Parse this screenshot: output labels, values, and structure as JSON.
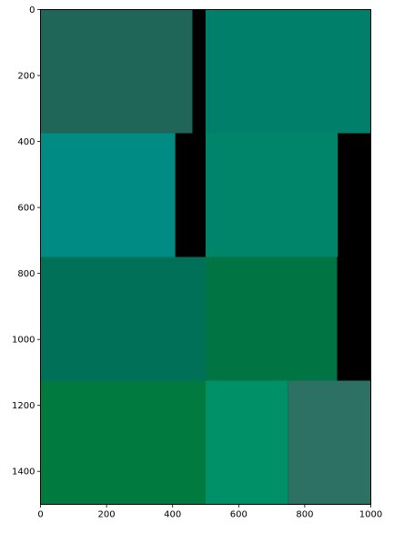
{
  "chart_data": {
    "type": "heatmap",
    "title": "",
    "xlabel": "",
    "ylabel": "",
    "xlim": [
      0,
      1000
    ],
    "ylim": [
      1500,
      0
    ],
    "y_inverted": true,
    "grid": false,
    "background_color": "#000000",
    "x_ticks": [
      0,
      200,
      400,
      600,
      800,
      1000
    ],
    "y_ticks": [
      0,
      200,
      400,
      600,
      800,
      1000,
      1200,
      1400
    ],
    "rects": [
      {
        "x0": 0,
        "x1": 460,
        "y0": 0,
        "y1": 375,
        "color": "#1f6659"
      },
      {
        "x0": 500,
        "x1": 1000,
        "y0": 0,
        "y1": 375,
        "color": "#007f6a"
      },
      {
        "x0": 0,
        "x1": 408,
        "y0": 375,
        "y1": 750,
        "color": "#008b84"
      },
      {
        "x0": 500,
        "x1": 900,
        "y0": 375,
        "y1": 750,
        "color": "#00846a"
      },
      {
        "x0": 0,
        "x1": 500,
        "y0": 750,
        "y1": 1125,
        "color": "#007058"
      },
      {
        "x0": 500,
        "x1": 898,
        "y0": 750,
        "y1": 1125,
        "color": "#007442"
      },
      {
        "x0": 0,
        "x1": 500,
        "y0": 1125,
        "y1": 1500,
        "color": "#007a3f"
      },
      {
        "x0": 500,
        "x1": 750,
        "y0": 1125,
        "y1": 1500,
        "color": "#009068"
      },
      {
        "x0": 750,
        "x1": 1000,
        "y0": 1125,
        "y1": 1500,
        "color": "#2c7163"
      }
    ]
  }
}
